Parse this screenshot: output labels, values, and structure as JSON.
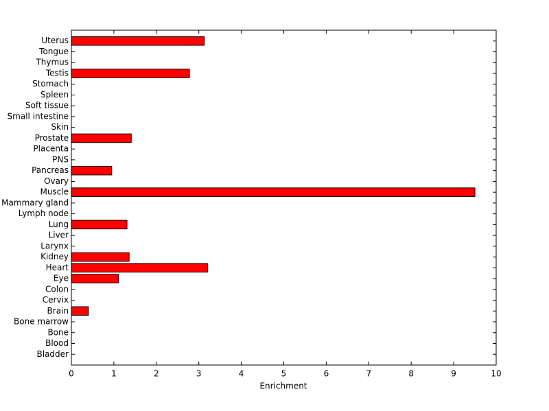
{
  "chart_data": {
    "type": "barh",
    "xlabel": "Enrichment",
    "categories": [
      "Bladder",
      "Blood",
      "Bone",
      "Bone marrow",
      "Brain",
      "Cervix",
      "Colon",
      "Eye",
      "Heart",
      "Kidney",
      "Larynx",
      "Liver",
      "Lung",
      "Lymph node",
      "Mammary gland",
      "Muscle",
      "Ovary",
      "Pancreas",
      "PNS",
      "Placenta",
      "Prostate",
      "Skin",
      "Small intestine",
      "Soft tissue",
      "Spleen",
      "Stomach",
      "Testis",
      "Thymus",
      "Tongue",
      "Uterus"
    ],
    "values": [
      0,
      0,
      0,
      0,
      0.4,
      0,
      0,
      1.11,
      3.21,
      1.36,
      0,
      0,
      1.31,
      0,
      0,
      9.5,
      0,
      0.95,
      0,
      0,
      1.41,
      0,
      0,
      0,
      0,
      0,
      2.78,
      0,
      0,
      3.13
    ],
    "color": "#ff0000",
    "xlim": [
      0,
      10
    ],
    "xticks": [
      0,
      1,
      2,
      3,
      4,
      5,
      6,
      7,
      8,
      9,
      10
    ],
    "grid": false
  }
}
